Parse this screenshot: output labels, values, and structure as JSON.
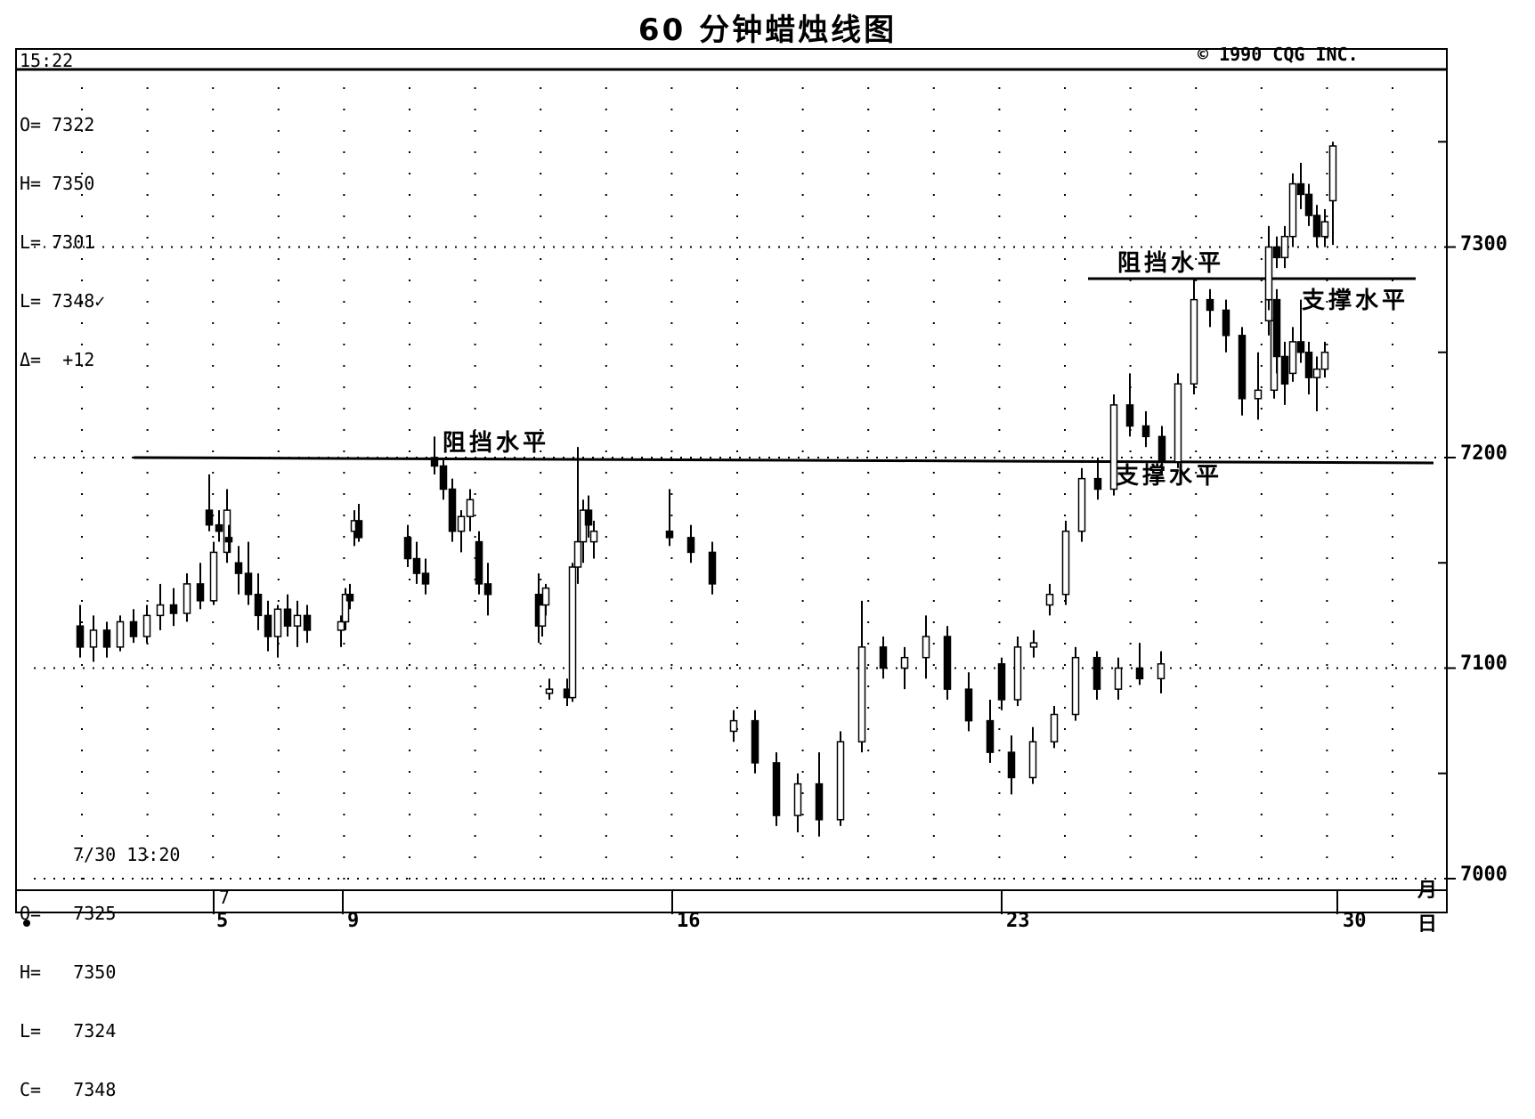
{
  "chart_data": {
    "type": "candlestick",
    "title": "60 分钟蜡烛线图",
    "interval_label": "15:22",
    "copyright": "© 1990 CQG INC.",
    "ohlc_top": [
      {
        "k": "O=",
        "v": "7322"
      },
      {
        "k": "H=",
        "v": "7350"
      },
      {
        "k": "L=",
        "v": "7301"
      },
      {
        "k": "L=",
        "v": "7348✓"
      },
      {
        "k": "Δ=",
        "v": "+12"
      }
    ],
    "ohlc_bottom": {
      "timestamp": "7/30 13:20",
      "rows": [
        {
          "k": "O=",
          "v": "7325"
        },
        {
          "k": "H=",
          "v": "7350"
        },
        {
          "k": "L=",
          "v": "7324"
        },
        {
          "k": "C=",
          "v": "7348"
        }
      ]
    },
    "y_ticks": [
      "7300",
      "7200",
      "7100",
      "7000"
    ],
    "ylim": [
      6990,
      7420
    ],
    "x_ticks": [
      "5",
      "9",
      "16",
      "23",
      "30"
    ],
    "x_top_tick": "7",
    "month_label": "月",
    "day_label": "日",
    "annotations": {
      "resistance_1": "阻挡水平",
      "resistance_2": "阻挡水平",
      "support_1": "支撑水平",
      "support_2": "支撑水平"
    },
    "levels": {
      "resistance_1": 7200,
      "resistance_2": 7285
    },
    "candles": [
      [
        7120,
        7130,
        7105,
        7110
      ],
      [
        7110,
        7125,
        7103,
        7118
      ],
      [
        7118,
        7122,
        7105,
        7110
      ],
      [
        7110,
        7125,
        7108,
        7122
      ],
      [
        7122,
        7128,
        7112,
        7115
      ],
      [
        7115,
        7130,
        7112,
        7125
      ],
      [
        7125,
        7140,
        7118,
        7130
      ],
      [
        7130,
        7138,
        7120,
        7126
      ],
      [
        7126,
        7145,
        7122,
        7140
      ],
      [
        7140,
        7150,
        7128,
        7132
      ],
      [
        7132,
        7160,
        7130,
        7155
      ],
      [
        7155,
        7185,
        7150,
        7175
      ],
      [
        7175,
        7192,
        7165,
        7168
      ],
      [
        7168,
        7175,
        7160,
        7165
      ],
      [
        7162,
        7168,
        7155,
        7160
      ],
      [
        7150,
        7158,
        7135,
        7145
      ],
      [
        7145,
        7160,
        7130,
        7135
      ],
      [
        7135,
        7145,
        7118,
        7125
      ],
      [
        7125,
        7132,
        7108,
        7115
      ],
      [
        7115,
        7130,
        7105,
        7128
      ],
      [
        7128,
        7135,
        7115,
        7120
      ],
      [
        7120,
        7132,
        7110,
        7125
      ],
      [
        7125,
        7130,
        7112,
        7118
      ],
      [
        7118,
        7125,
        7110,
        7122
      ],
      [
        7122,
        7138,
        7118,
        7135
      ],
      [
        7135,
        7140,
        7128,
        7132
      ],
      [
        7165,
        7175,
        7158,
        7170
      ],
      [
        7170,
        7178,
        7160,
        7162
      ],
      [
        7162,
        7168,
        7148,
        7152
      ],
      [
        7152,
        7160,
        7140,
        7145
      ],
      [
        7145,
        7152,
        7135,
        7140
      ],
      [
        7200,
        7210,
        7192,
        7196
      ],
      [
        7196,
        7200,
        7180,
        7185
      ],
      [
        7185,
        7190,
        7160,
        7165
      ],
      [
        7165,
        7175,
        7155,
        7172
      ],
      [
        7172,
        7185,
        7165,
        7180
      ],
      [
        7160,
        7165,
        7135,
        7140
      ],
      [
        7140,
        7150,
        7125,
        7135
      ],
      [
        7135,
        7145,
        7112,
        7120
      ],
      [
        7120,
        7135,
        7115,
        7130
      ],
      [
        7130,
        7140,
        7125,
        7138
      ],
      [
        7088,
        7095,
        7085,
        7090
      ],
      [
        7090,
        7095,
        7082,
        7086
      ],
      [
        7086,
        7150,
        7084,
        7148
      ],
      [
        7148,
        7205,
        7140,
        7160
      ],
      [
        7160,
        7180,
        7150,
        7175
      ],
      [
        7175,
        7182,
        7162,
        7168
      ],
      [
        7160,
        7170,
        7152,
        7165
      ],
      [
        7165,
        7185,
        7158,
        7162
      ],
      [
        7162,
        7168,
        7150,
        7155
      ],
      [
        7155,
        7160,
        7135,
        7140
      ],
      [
        7070,
        7080,
        7065,
        7075
      ],
      [
        7075,
        7080,
        7050,
        7055
      ],
      [
        7055,
        7060,
        7025,
        7030
      ],
      [
        7030,
        7050,
        7022,
        7045
      ],
      [
        7045,
        7060,
        7020,
        7028
      ],
      [
        7028,
        7070,
        7025,
        7065
      ],
      [
        7065,
        7132,
        7060,
        7110
      ],
      [
        7110,
        7115,
        7095,
        7100
      ],
      [
        7100,
        7110,
        7090,
        7105
      ],
      [
        7105,
        7125,
        7095,
        7115
      ],
      [
        7115,
        7120,
        7085,
        7090
      ],
      [
        7090,
        7098,
        7070,
        7075
      ],
      [
        7075,
        7085,
        7055,
        7060
      ],
      [
        7060,
        7068,
        7040,
        7048
      ],
      [
        7048,
        7072,
        7045,
        7065
      ],
      [
        7065,
        7082,
        7062,
        7078
      ],
      [
        7078,
        7110,
        7075,
        7105
      ],
      [
        7105,
        7108,
        7085,
        7090
      ],
      [
        7090,
        7105,
        7085,
        7100
      ],
      [
        7100,
        7112,
        7092,
        7095
      ],
      [
        7095,
        7108,
        7088,
        7102
      ],
      [
        7102,
        7105,
        7080,
        7085
      ],
      [
        7085,
        7115,
        7082,
        7110
      ],
      [
        7110,
        7118,
        7105,
        7112
      ],
      [
        7130,
        7140,
        7125,
        7135
      ],
      [
        7135,
        7170,
        7130,
        7165
      ],
      [
        7165,
        7195,
        7160,
        7190
      ],
      [
        7190,
        7200,
        7180,
        7185
      ],
      [
        7185,
        7230,
        7182,
        7225
      ],
      [
        7225,
        7240,
        7210,
        7215
      ],
      [
        7215,
        7222,
        7205,
        7210
      ],
      [
        7210,
        7215,
        7192,
        7198
      ],
      [
        7198,
        7240,
        7195,
        7235
      ],
      [
        7235,
        7285,
        7230,
        7275
      ],
      [
        7275,
        7280,
        7262,
        7270
      ],
      [
        7270,
        7275,
        7250,
        7258
      ],
      [
        7258,
        7262,
        7220,
        7228
      ],
      [
        7228,
        7250,
        7218,
        7232
      ],
      [
        7232,
        7270,
        7228,
        7265
      ],
      [
        7265,
        7282,
        7258,
        7275
      ],
      [
        7275,
        7280,
        7240,
        7248
      ],
      [
        7248,
        7255,
        7225,
        7235
      ],
      [
        7240,
        7262,
        7236,
        7255
      ],
      [
        7255,
        7275,
        7245,
        7250
      ],
      [
        7250,
        7255,
        7230,
        7238
      ],
      [
        7238,
        7248,
        7222,
        7242
      ],
      [
        7242,
        7255,
        7238,
        7250
      ],
      [
        7275,
        7310,
        7270,
        7300
      ],
      [
        7300,
        7305,
        7290,
        7295
      ],
      [
        7295,
        7310,
        7290,
        7305
      ],
      [
        7305,
        7335,
        7300,
        7330
      ],
      [
        7330,
        7340,
        7318,
        7325
      ],
      [
        7325,
        7330,
        7310,
        7315
      ],
      [
        7315,
        7320,
        7300,
        7305
      ],
      [
        7305,
        7318,
        7300,
        7312
      ],
      [
        7322,
        7350,
        7301,
        7348
      ]
    ]
  }
}
